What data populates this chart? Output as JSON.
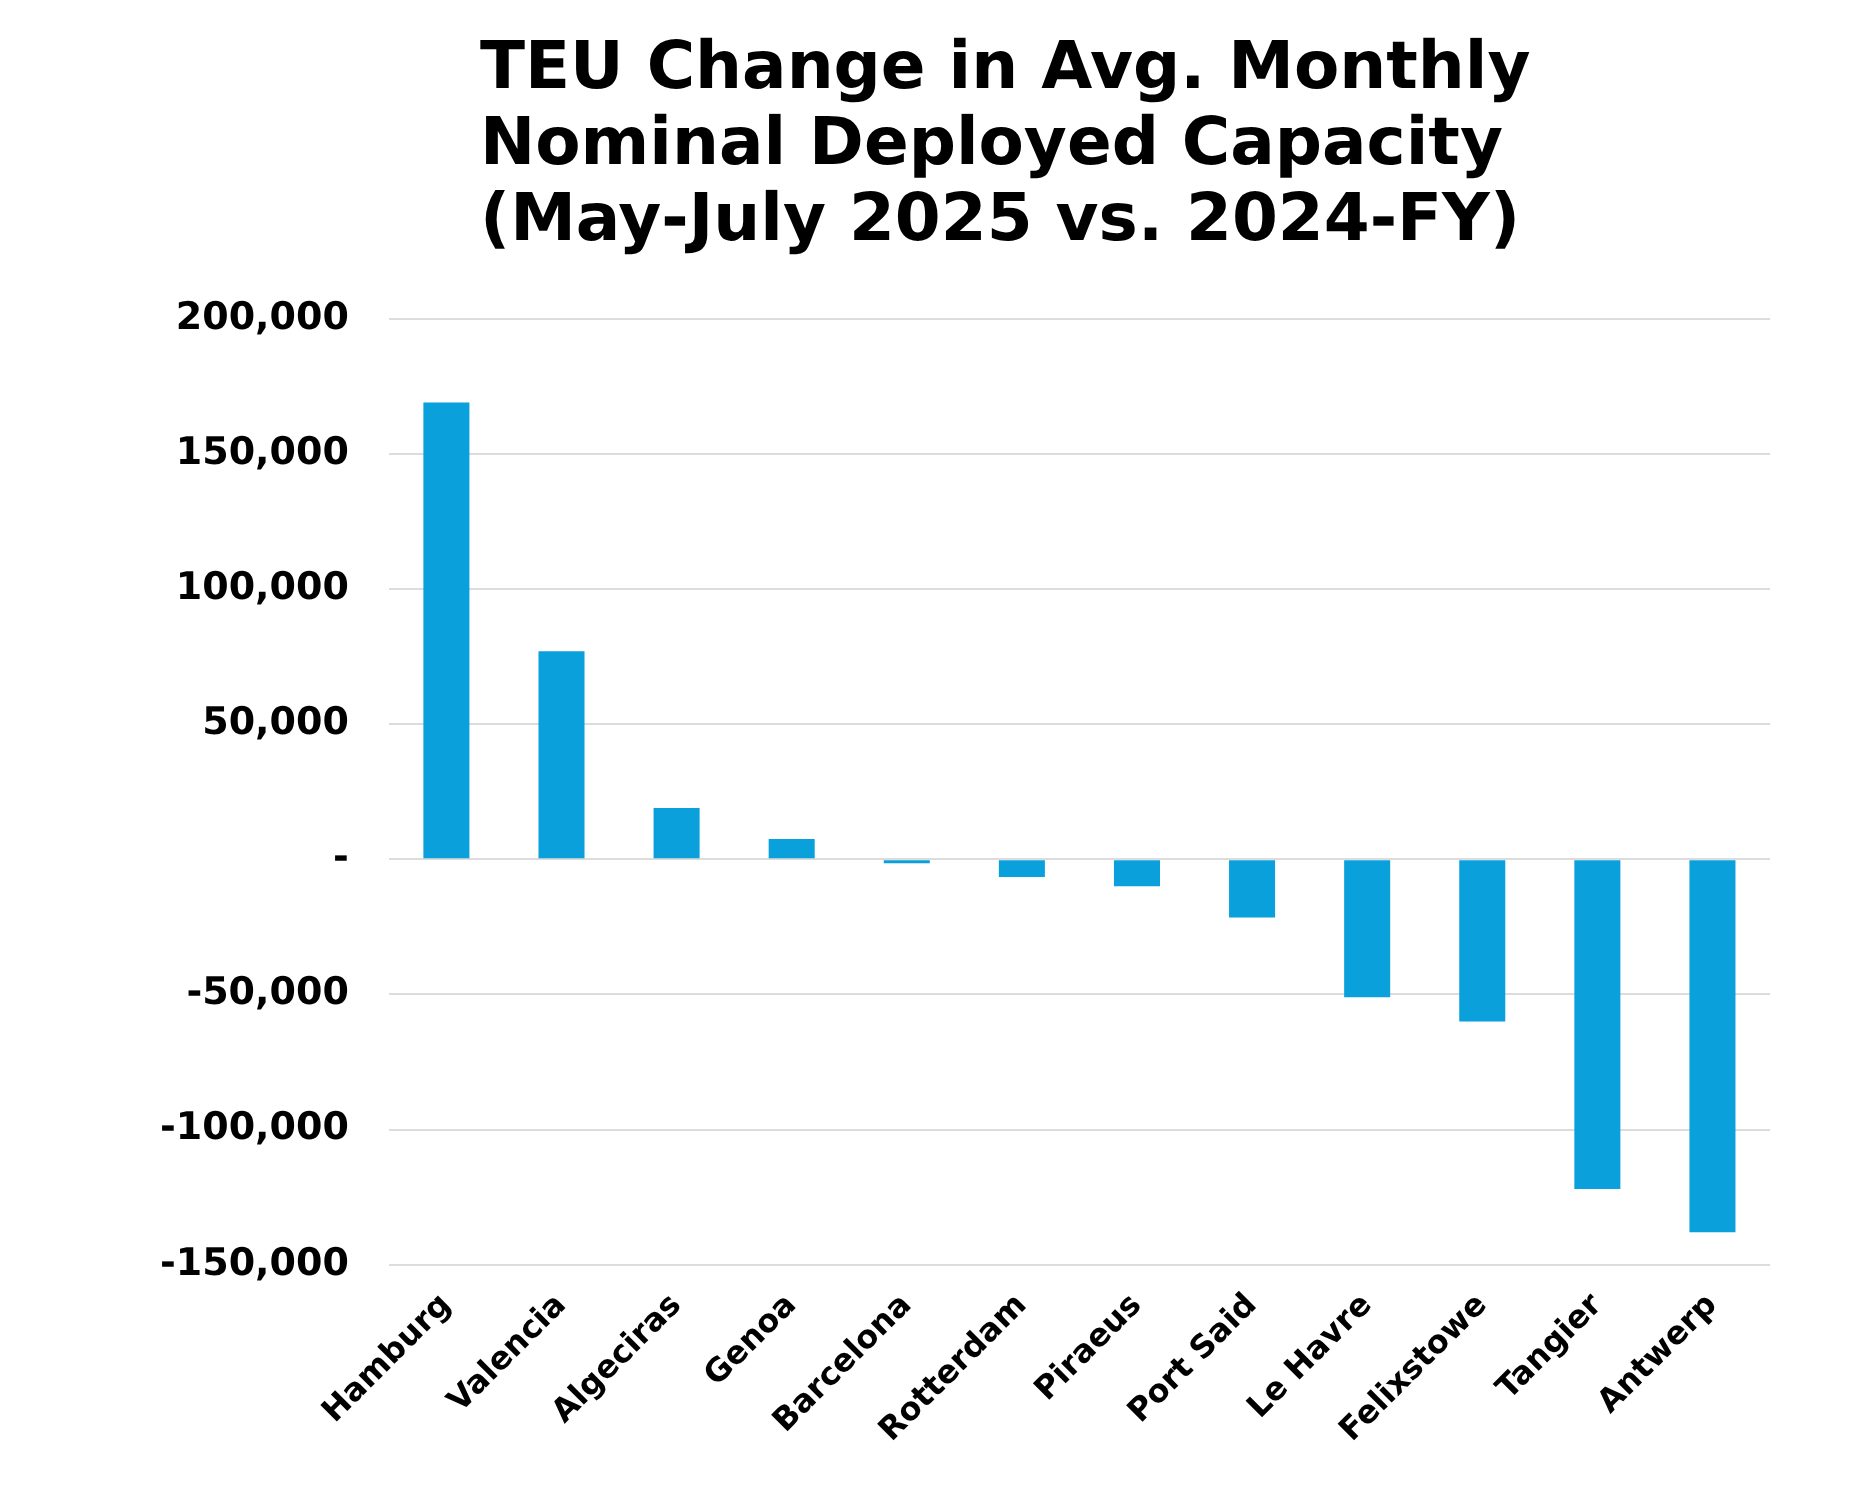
{
  "chart_data": {
    "type": "bar",
    "title": "TEU Change in Avg. Monthly Nominal Deployed Capacity (May-July 2025 vs. 2024-FY)",
    "categories": [
      "Hamburg",
      "Valencia",
      "Algeciras",
      "Genoa",
      "Barcelona",
      "Rotterdam",
      "Piraeus",
      "Port Said",
      "Le Havre",
      "Felixstowe",
      "Tangier",
      "Antwerp"
    ],
    "values": [
      169000,
      77000,
      19000,
      7500,
      -1500,
      -6500,
      -10000,
      -21500,
      -51000,
      -60000,
      -122000,
      -138000
    ],
    "color": "#0aa0dc",
    "ylim": [
      -150000,
      200000
    ],
    "yticks": [
      {
        "value": -150000,
        "label": "-150,000"
      },
      {
        "value": -100000,
        "label": "-100,000"
      },
      {
        "value": -50000,
        "label": "-50,000"
      },
      {
        "value": 0,
        "label": "-"
      },
      {
        "value": 50000,
        "label": "50,000"
      },
      {
        "value": 100000,
        "label": "100,000"
      },
      {
        "value": 150000,
        "label": "150,000"
      },
      {
        "value": 200000,
        "label": "200,000"
      }
    ],
    "grid": "y"
  }
}
